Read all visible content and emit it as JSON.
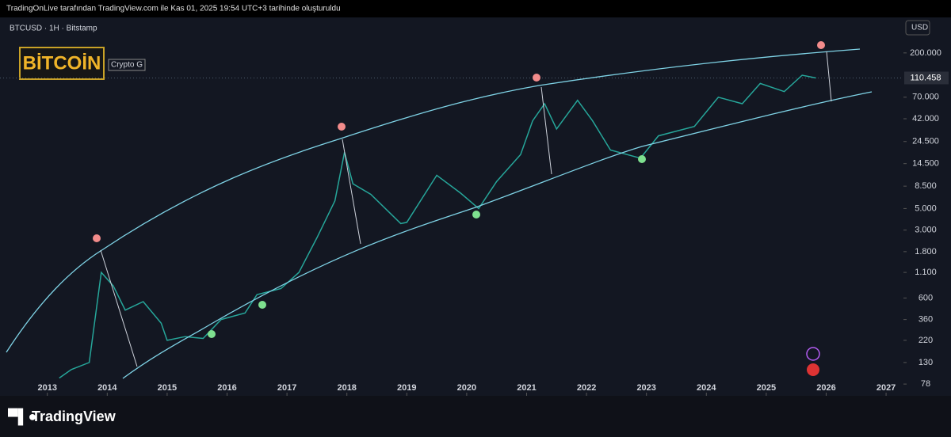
{
  "header": "TradingOnLive tarafından TradingView.com ile Kas 01, 2025 19:54 UTC+3 tarihinde oluşturuldu",
  "brand": "TradingView",
  "chart_data": {
    "type": "line",
    "title": "BTCUSD · 1H · Bitstamp",
    "badge": "BİTCOİN",
    "badge_note": "Crypto G",
    "currency": "USD",
    "log_scale": true,
    "color": "#26a69a",
    "x": [
      2013.2,
      2013.4,
      2013.7,
      2013.9,
      2014.1,
      2014.3,
      2014.6,
      2014.9,
      2015.0,
      2015.3,
      2015.6,
      2015.9,
      2016.3,
      2016.5,
      2016.9,
      2017.2,
      2017.5,
      2017.8,
      2017.96,
      2018.1,
      2018.4,
      2018.9,
      2019.0,
      2019.5,
      2019.9,
      2020.2,
      2020.5,
      2020.9,
      2021.1,
      2021.3,
      2021.5,
      2021.85,
      2022.1,
      2022.4,
      2022.9,
      2023.2,
      2023.8,
      2024.2,
      2024.6,
      2024.9,
      2025.3,
      2025.6,
      2025.83
    ],
    "values": [
      90,
      110,
      130,
      1100,
      800,
      450,
      550,
      330,
      220,
      240,
      230,
      360,
      420,
      650,
      750,
      1100,
      2500,
      6000,
      19000,
      9000,
      7000,
      3500,
      3600,
      11000,
      7200,
      5000,
      9500,
      18000,
      40000,
      60000,
      33000,
      65000,
      40000,
      20000,
      16500,
      28000,
      35000,
      70000,
      60000,
      97000,
      80000,
      118000,
      110458
    ],
    "last_price": {
      "value": 110458,
      "label": "110.458"
    },
    "xlim": [
      2012.21,
      2027.29
    ],
    "xticks": [
      2013,
      2014,
      2015,
      2016,
      2017,
      2018,
      2019,
      2020,
      2021,
      2022,
      2023,
      2024,
      2025,
      2026,
      2027
    ],
    "ylim": [
      59,
      464000
    ],
    "yticks": [
      {
        "value": 200000,
        "label": "200.000"
      },
      {
        "value": 70000,
        "label": "70.000"
      },
      {
        "value": 42000,
        "label": "42.000"
      },
      {
        "value": 24500,
        "label": "24.500"
      },
      {
        "value": 14500,
        "label": "14.500"
      },
      {
        "value": 8500,
        "label": "8.500"
      },
      {
        "value": 5000,
        "label": "5.000"
      },
      {
        "value": 3000,
        "label": "3.000"
      },
      {
        "value": 1800,
        "label": "1.800"
      },
      {
        "value": 1100,
        "label": "1.100"
      },
      600,
      360,
      220,
      130,
      78
    ]
  }
}
